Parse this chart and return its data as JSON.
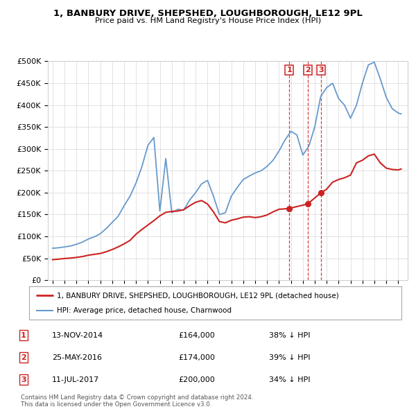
{
  "title": "1, BANBURY DRIVE, SHEPSHED, LOUGHBOROUGH, LE12 9PL",
  "subtitle": "Price paid vs. HM Land Registry's House Price Index (HPI)",
  "legend_label_red": "1, BANBURY DRIVE, SHEPSHED, LOUGHBOROUGH, LE12 9PL (detached house)",
  "legend_label_blue": "HPI: Average price, detached house, Charnwood",
  "footer1": "Contains HM Land Registry data © Crown copyright and database right 2024.",
  "footer2": "This data is licensed under the Open Government Licence v3.0.",
  "transactions": [
    {
      "num": 1,
      "date": "13-NOV-2014",
      "price": 164000,
      "hpi_pct": "38% ↓ HPI",
      "x": 2014.87
    },
    {
      "num": 2,
      "date": "25-MAY-2016",
      "price": 174000,
      "hpi_pct": "39% ↓ HPI",
      "x": 2016.4
    },
    {
      "num": 3,
      "date": "11-JUL-2017",
      "price": 200000,
      "hpi_pct": "34% ↓ HPI",
      "x": 2017.53
    }
  ],
  "hpi_color": "#6699cc",
  "price_color": "#cc2222",
  "vline_color": "#cc2222",
  "background_color": "#ffffff",
  "grid_color": "#dddddd",
  "ylim": [
    0,
    500000
  ],
  "yticks": [
    0,
    50000,
    100000,
    150000,
    200000,
    250000,
    300000,
    350000,
    400000,
    450000,
    500000
  ],
  "hpi_years": [
    1995.0,
    1995.5,
    1996.0,
    1996.5,
    1997.0,
    1997.5,
    1998.0,
    1998.5,
    1999.0,
    1999.5,
    2000.0,
    2000.5,
    2001.0,
    2001.5,
    2002.0,
    2002.5,
    2003.0,
    2003.5,
    2004.0,
    2004.5,
    2005.0,
    2005.5,
    2006.0,
    2006.5,
    2007.0,
    2007.5,
    2008.0,
    2008.5,
    2009.0,
    2009.5,
    2010.0,
    2010.5,
    2011.0,
    2011.5,
    2012.0,
    2012.5,
    2013.0,
    2013.5,
    2014.0,
    2014.5,
    2015.0,
    2015.5,
    2016.0,
    2016.5,
    2017.0,
    2017.5,
    2018.0,
    2018.5,
    2019.0,
    2019.5,
    2020.0,
    2020.5,
    2021.0,
    2021.5,
    2022.0,
    2022.5,
    2023.0,
    2023.5,
    2024.0,
    2024.25
  ],
  "hpi_values": [
    73000,
    74000,
    76000,
    78000,
    82000,
    87000,
    94000,
    99000,
    106000,
    118000,
    132000,
    146000,
    170000,
    192000,
    222000,
    260000,
    308000,
    326000,
    158000,
    278000,
    154000,
    162000,
    160000,
    183000,
    200000,
    220000,
    228000,
    192000,
    150000,
    154000,
    192000,
    212000,
    230000,
    238000,
    245000,
    250000,
    260000,
    274000,
    295000,
    320000,
    340000,
    332000,
    286000,
    306000,
    350000,
    420000,
    440000,
    450000,
    415000,
    400000,
    370000,
    400000,
    450000,
    492000,
    498000,
    460000,
    418000,
    392000,
    382000,
    380000
  ],
  "price_years": [
    1995.0,
    1995.5,
    1996.0,
    1996.5,
    1997.0,
    1997.5,
    1998.0,
    1998.5,
    1999.0,
    1999.5,
    2000.0,
    2000.5,
    2001.0,
    2001.5,
    2002.0,
    2002.5,
    2003.0,
    2003.5,
    2004.0,
    2004.5,
    2005.0,
    2005.5,
    2006.0,
    2006.5,
    2007.0,
    2007.5,
    2008.0,
    2008.5,
    2009.0,
    2009.5,
    2010.0,
    2010.5,
    2011.0,
    2011.5,
    2012.0,
    2012.5,
    2013.0,
    2013.5,
    2014.0,
    2014.5,
    2014.87,
    2016.4,
    2017.53,
    2018.0,
    2018.5,
    2019.0,
    2019.5,
    2020.0,
    2020.5,
    2021.0,
    2021.5,
    2022.0,
    2022.5,
    2023.0,
    2023.5,
    2024.0,
    2024.25
  ],
  "price_values": [
    47000,
    48000,
    49500,
    50500,
    52000,
    54000,
    57000,
    59000,
    61000,
    65000,
    70000,
    76000,
    83000,
    91000,
    105000,
    116000,
    126000,
    136000,
    147000,
    155000,
    157000,
    158000,
    161000,
    170000,
    178000,
    182000,
    174000,
    156000,
    134000,
    131000,
    137000,
    140000,
    144000,
    145000,
    143000,
    145000,
    149000,
    156000,
    162000,
    163000,
    164000,
    174000,
    200000,
    208000,
    224000,
    230000,
    234000,
    240000,
    268000,
    274000,
    284000,
    288000,
    268000,
    256000,
    253000,
    252000,
    254000
  ]
}
